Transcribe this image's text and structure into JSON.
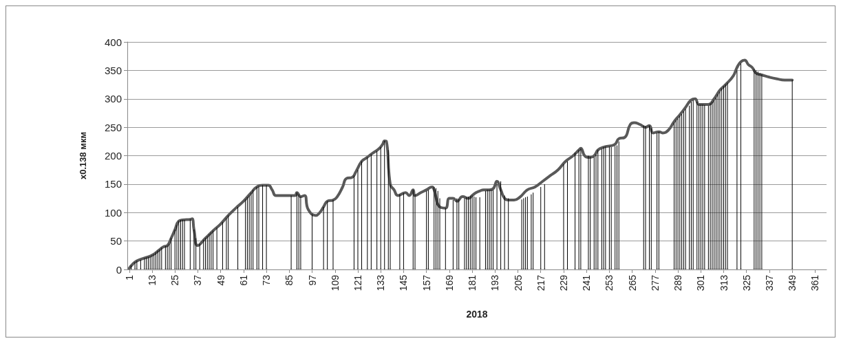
{
  "chart_data": {
    "type": "line",
    "xlabel": "2018",
    "ylabel": "x0.138 мкм",
    "xlim": [
      0,
      367
    ],
    "xticks": [
      1,
      13,
      25,
      37,
      49,
      61,
      73,
      85,
      97,
      109,
      121,
      133,
      145,
      157,
      169,
      181,
      193,
      205,
      217,
      229,
      241,
      253,
      265,
      277,
      289,
      301,
      313,
      325,
      337,
      349,
      361
    ],
    "ylim": [
      0,
      400
    ],
    "yticks": [
      0,
      50,
      100,
      150,
      200,
      250,
      300,
      350,
      400
    ],
    "grid": "y",
    "marker": "none",
    "series": [
      {
        "color": "#595959",
        "x": [
          1,
          3,
          5,
          9,
          13,
          17,
          19,
          21,
          23,
          25,
          27,
          29,
          33,
          34,
          35,
          37,
          41,
          45,
          49,
          53,
          57,
          61,
          65,
          68,
          71,
          74,
          76,
          78,
          82,
          88,
          89,
          91,
          93,
          95,
          99,
          101,
          103,
          105,
          108,
          110,
          113,
          115,
          118,
          120,
          123,
          125,
          129,
          132,
          134,
          135,
          136,
          138,
          140,
          142,
          146,
          148,
          150,
          151,
          154,
          157,
          160,
          161,
          164,
          167,
          169,
          171,
          173,
          176,
          179,
          181,
          183,
          185,
          187,
          190,
          192,
          194,
          196,
          198,
          200,
          203,
          206,
          210,
          214,
          218,
          222,
          226,
          230,
          234,
          237,
          238,
          240,
          242,
          245,
          247,
          250,
          253,
          256,
          258,
          261,
          264,
          266,
          269,
          272,
          274,
          276,
          279,
          281,
          284,
          287,
          290,
          293,
          296,
          298,
          300,
          302,
          305,
          308,
          311,
          314,
          318,
          320,
          322,
          324,
          326,
          328,
          330,
          333,
          337,
          341,
          345,
          349
        ],
        "values": [
          2,
          10,
          15,
          20,
          25,
          35,
          40,
          42,
          55,
          70,
          85,
          87,
          88,
          89,
          70,
          42,
          55,
          68,
          80,
          95,
          108,
          120,
          135,
          145,
          148,
          148,
          140,
          130,
          130,
          130,
          135,
          128,
          130,
          105,
          95,
          100,
          110,
          120,
          122,
          127,
          145,
          160,
          162,
          172,
          190,
          195,
          205,
          212,
          220,
          226,
          225,
          150,
          140,
          130,
          135,
          130,
          140,
          130,
          135,
          140,
          145,
          140,
          110,
          108,
          125,
          125,
          120,
          128,
          125,
          130,
          135,
          138,
          140,
          140,
          142,
          155,
          140,
          125,
          122,
          122,
          127,
          140,
          145,
          155,
          165,
          175,
          190,
          200,
          210,
          213,
          200,
          197,
          200,
          210,
          215,
          217,
          220,
          230,
          232,
          255,
          258,
          255,
          250,
          253,
          240,
          242,
          240,
          245,
          260,
          272,
          285,
          298,
          300,
          290,
          290,
          290,
          300,
          315,
          325,
          340,
          355,
          365,
          368,
          360,
          355,
          345,
          342,
          338,
          335,
          333,
          333
        ]
      },
      {
        "type": "bar",
        "color": "#000000",
        "x": [
          2,
          4,
          5,
          7,
          9,
          10,
          11,
          12,
          13,
          14,
          15,
          16,
          17,
          18,
          20,
          21,
          22,
          23,
          25,
          26,
          27,
          28,
          29,
          30,
          33,
          35,
          36,
          38,
          40,
          41,
          42,
          43,
          44,
          45,
          47,
          50,
          52,
          53,
          58,
          62,
          63,
          64,
          65,
          66,
          68,
          69,
          71,
          73,
          86,
          89,
          90,
          91,
          97,
          103,
          105,
          108,
          119,
          121,
          123,
          126,
          128,
          131,
          133,
          135,
          137,
          138,
          143,
          145,
          150,
          151,
          157,
          158,
          161,
          162,
          163,
          164,
          167,
          171,
          173,
          174,
          177,
          178,
          179,
          180,
          181,
          182,
          183,
          185,
          188,
          189,
          190,
          191,
          192,
          194,
          196,
          198,
          200,
          207,
          208,
          209,
          210,
          212,
          213,
          217,
          219,
          229,
          231,
          235,
          237,
          238,
          242,
          243,
          245,
          246,
          247,
          249,
          250,
          251,
          253,
          254,
          256,
          257,
          258,
          271,
          272,
          274,
          275,
          278,
          279,
          287,
          288,
          289,
          290,
          291,
          292,
          293,
          295,
          296,
          297,
          299,
          300,
          301,
          302,
          303,
          305,
          306,
          307,
          308,
          309,
          310,
          311,
          312,
          313,
          314,
          315,
          320,
          322,
          329,
          330,
          331,
          332,
          333,
          349
        ],
        "values": [
          7,
          13,
          15,
          17,
          20,
          21,
          22,
          23,
          25,
          27,
          30,
          33,
          35,
          38,
          41,
          42,
          45,
          55,
          70,
          78,
          85,
          87,
          87,
          87,
          88,
          70,
          55,
          45,
          52,
          55,
          58,
          62,
          65,
          68,
          73,
          83,
          90,
          95,
          110,
          123,
          127,
          130,
          135,
          140,
          145,
          146,
          148,
          148,
          130,
          135,
          132,
          128,
          97,
          110,
          120,
          122,
          165,
          175,
          190,
          197,
          202,
          208,
          215,
          226,
          210,
          150,
          132,
          134,
          140,
          132,
          138,
          140,
          145,
          143,
          138,
          125,
          108,
          122,
          125,
          124,
          125,
          127,
          128,
          129,
          130,
          128,
          127,
          127,
          138,
          140,
          140,
          140,
          140,
          150,
          155,
          130,
          125,
          123,
          125,
          127,
          128,
          132,
          135,
          145,
          150,
          185,
          190,
          205,
          210,
          212,
          200,
          198,
          198,
          202,
          210,
          212,
          215,
          216,
          216,
          215,
          217,
          218,
          225,
          253,
          252,
          253,
          248,
          240,
          242,
          258,
          262,
          265,
          270,
          273,
          278,
          282,
          288,
          295,
          298,
          295,
          290,
          290,
          290,
          289,
          288,
          292,
          295,
          298,
          302,
          308,
          312,
          318,
          322,
          325,
          328,
          350,
          362,
          352,
          350,
          348,
          345,
          343,
          333
        ]
      },
      {
        "type": "scatter",
        "color": "#bfbfbf",
        "marker": "square",
        "x": [
          2,
          4,
          5,
          7,
          9,
          10,
          11,
          12,
          13,
          14,
          15,
          16,
          17,
          18,
          20,
          21,
          22,
          23,
          25,
          26,
          27,
          28,
          29,
          30,
          33,
          35,
          36,
          38,
          40,
          41,
          42,
          43,
          44,
          45,
          47,
          50,
          52,
          53,
          58,
          62,
          63,
          64,
          65,
          66,
          68,
          69,
          71,
          73,
          86,
          89,
          90,
          91,
          97,
          103,
          105,
          108,
          119,
          121,
          123,
          126,
          128,
          131,
          133,
          135,
          137,
          138,
          143,
          145,
          150,
          151,
          157,
          158,
          161,
          162,
          163,
          164,
          167,
          171,
          173,
          174,
          177,
          178,
          179,
          180,
          181,
          182,
          183,
          185,
          188,
          189,
          190,
          191,
          192,
          194,
          196,
          198,
          200,
          207,
          208,
          209,
          210,
          212,
          213,
          217,
          219,
          229,
          231,
          235,
          237,
          238,
          242,
          243,
          245,
          246,
          247,
          249,
          250,
          251,
          253,
          254,
          256,
          257,
          258,
          271,
          272,
          274,
          275,
          278,
          279,
          287,
          288,
          289,
          290,
          291,
          292,
          293,
          295,
          296,
          297,
          299,
          300,
          301,
          302,
          303,
          305,
          306,
          307,
          308,
          309,
          310,
          311,
          312,
          313,
          314,
          315,
          320,
          322,
          329,
          330,
          331,
          332,
          333,
          349
        ],
        "values": [
          0,
          0,
          0,
          0,
          0,
          0,
          0,
          0,
          0,
          0,
          0,
          0,
          0,
          0,
          0,
          0,
          0,
          0,
          0,
          0,
          0,
          0,
          0,
          0,
          0,
          0,
          0,
          0,
          0,
          0,
          0,
          0,
          0,
          0,
          0,
          0,
          0,
          0,
          0,
          0,
          0,
          0,
          0,
          0,
          0,
          0,
          0,
          0,
          0,
          0,
          0,
          0,
          0,
          0,
          0,
          0,
          0,
          0,
          0,
          0,
          0,
          0,
          0,
          0,
          0,
          0,
          0,
          0,
          0,
          0,
          0,
          0,
          0,
          0,
          0,
          0,
          0,
          0,
          0,
          0,
          0,
          0,
          0,
          0,
          0,
          0,
          0,
          0,
          0,
          0,
          0,
          0,
          0,
          0,
          0,
          0,
          0,
          0,
          0,
          0,
          0,
          0,
          0,
          0,
          0,
          0,
          0,
          0,
          0,
          0,
          0,
          0,
          0,
          0,
          0,
          0,
          0,
          0,
          0,
          0,
          0,
          0,
          0,
          0,
          0,
          0,
          0,
          0,
          0,
          0,
          0,
          0,
          0,
          0,
          0,
          0,
          0,
          0,
          0,
          0,
          0,
          0,
          0,
          0,
          0,
          0,
          0,
          0,
          0,
          0,
          0,
          0,
          0,
          0,
          0,
          0,
          0,
          0,
          0,
          0,
          0,
          0,
          0
        ]
      }
    ]
  }
}
